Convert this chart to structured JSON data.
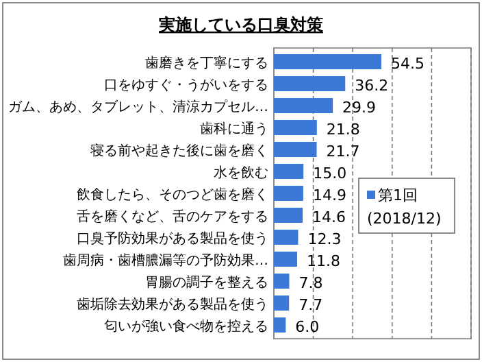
{
  "chart_data": {
    "type": "bar",
    "orientation": "horizontal",
    "title": "実施している口臭対策",
    "categories": [
      "歯磨きを丁寧にする",
      "口をゆすぐ・うがいをする",
      "ガム、あめ、タブレット、清涼カプセル…",
      "歯科に通う",
      "寝る前や起きた後に歯を磨く",
      "水を飲む",
      "飲食したら、そのつど歯を磨く",
      "舌を磨くなど、舌のケアをする",
      "口臭予防効果がある製品を使う",
      "歯周病・歯槽膿漏等の予防効果…",
      "胃腸の調子を整える",
      "歯垢除去効果がある製品を使う",
      "匂いが強い食べ物を控える"
    ],
    "series": [
      {
        "name": "第1回 (2018/12)",
        "color": "#3c78d8",
        "values": [
          54.5,
          36.2,
          29.9,
          21.8,
          21.7,
          15.0,
          14.9,
          14.6,
          12.3,
          11.8,
          7.8,
          7.7,
          6.0
        ],
        "value_labels": [
          "54.5",
          "36.2",
          "29.9",
          "21.8",
          "21.7",
          "15.0",
          "14.9",
          "14.6",
          "12.3",
          "11.8",
          "7.8",
          "7.7",
          "6.0"
        ]
      }
    ],
    "xlim": [
      0,
      100
    ],
    "xticks": [
      {
        "value": 0,
        "label": null
      },
      {
        "value": 20,
        "label": null
      },
      {
        "value": 40,
        "label": null
      },
      {
        "value": 60,
        "label": null
      },
      {
        "value": 80,
        "label": null
      },
      {
        "value": 100,
        "label": null
      }
    ],
    "grid": "x",
    "legend": "right",
    "tick_labels": "y"
  }
}
